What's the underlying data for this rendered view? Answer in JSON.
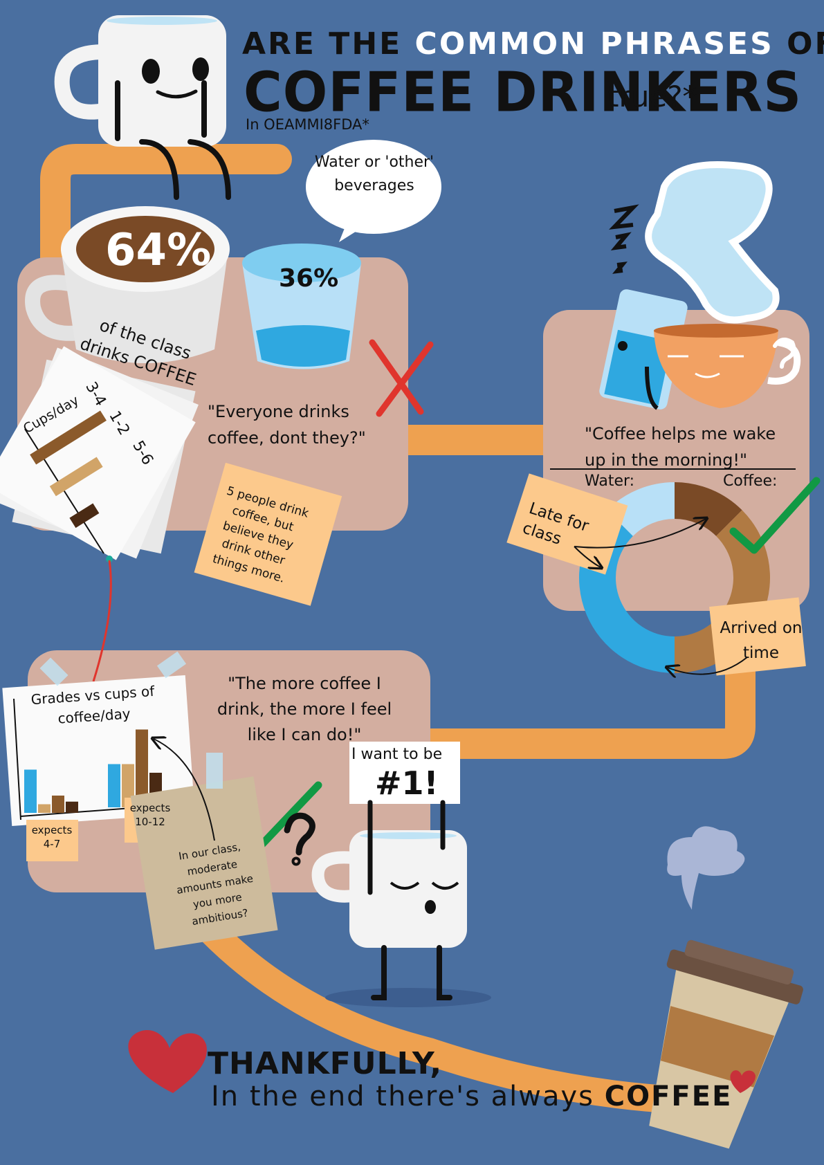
{
  "title": {
    "line1_pre": "ARE THE",
    "line1_white": "COMMON PHRASES",
    "line1_post": "OF",
    "main": "COFFEE DRINKERS",
    "suffix": "true?*",
    "subtitle": "In OEAMMI8FDA*"
  },
  "speech_bubble": {
    "text": "Water or 'other' beverages"
  },
  "stat_coffee": {
    "percent": "64%",
    "label": "of the class drinks COFFEE"
  },
  "stat_water": {
    "percent": "36%"
  },
  "phrases": [
    {
      "quote": "\"Everyone drinks coffee, dont they?\"",
      "verdict": "false"
    },
    {
      "quote": "\"Coffee helps me wake up in the morning!\"",
      "verdict": "true"
    },
    {
      "quote": "\"The more coffee I drink, the more I feel like I can do!\"",
      "verdict": "uncertain"
    }
  ],
  "notes": {
    "five_people": "5 people drink coffee, but believe they drink other things more.",
    "late": "Late for class",
    "arrived": "Arrived on time",
    "ambitious": "In our class, moderate amounts make you more ambitious?",
    "expects_low": "expects 4-7",
    "expects_high": "expects 10-12"
  },
  "donut_labels": {
    "water": "Water:",
    "coffee": "Coffee:"
  },
  "sign": {
    "line1": "I want to be",
    "line2": "#1!"
  },
  "ending": {
    "line1": "THANKFULLY,",
    "line2_pre": "In the end there's always",
    "line2_bold": "COFFEE"
  },
  "colors": {
    "background": "#4a6fa0",
    "panel": "#d3aea0",
    "pipe": "#eea150",
    "note": "#fcc98c",
    "coffee_dark": "#7a4a26",
    "coffee_mid": "#b07a43",
    "water_light": "#b8e0f7",
    "water_mid": "#2fa8e0",
    "check": "#119944",
    "cross": "#e0352d",
    "heart": "#c8303a"
  },
  "chart_data": [
    {
      "type": "bar",
      "title": "Cups/day",
      "categories": [
        "3-4",
        "1-2",
        "5-6"
      ],
      "values": [
        3,
        2,
        1
      ],
      "colors": [
        "#8b5a2b",
        "#d1a468",
        "#4a2a14"
      ]
    },
    {
      "type": "bar",
      "title": "Grades vs cups of coffee/day",
      "categories": [
        "expects 4-7",
        "expects 10-12"
      ],
      "series": [
        {
          "values": [
            5,
            5
          ]
        },
        {
          "values": [
            1,
            5
          ]
        },
        {
          "values": [
            2,
            9
          ]
        },
        {
          "values": [
            1.3,
            4
          ]
        }
      ],
      "series_colors": [
        "#2fa8e0",
        "#d1a468",
        "#8b5a2b",
        "#4a2a14"
      ]
    },
    {
      "type": "pie",
      "title": "",
      "categories": [
        "Water: Late for class",
        "Water: Arrived on time",
        "Coffee: Late for class",
        "Coffee: Arrived on time"
      ],
      "values": [
        12.5,
        37.5,
        12.5,
        37.5
      ],
      "colors": [
        "#b8e0f7",
        "#2fa8e0",
        "#7a4a26",
        "#b07a43"
      ]
    }
  ]
}
